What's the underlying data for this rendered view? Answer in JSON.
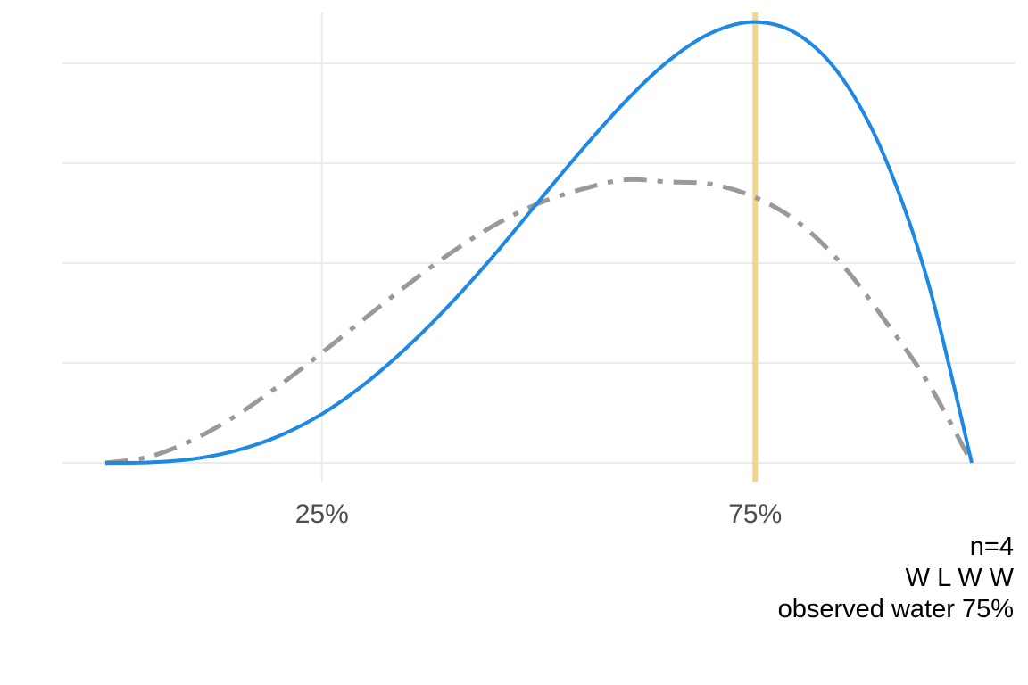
{
  "chart_data": {
    "type": "line",
    "title": "",
    "xlabel": "",
    "ylabel": "",
    "x_tick_values": [
      0.25,
      0.75
    ],
    "x_tick_labels": [
      "25%",
      "75%"
    ],
    "y_ticks_labeled": false,
    "grid": true,
    "xlim": [
      0,
      1
    ],
    "ylim": [
      0,
      2.15
    ],
    "reference_line": {
      "x": 0.75,
      "color": "#F0D58C"
    },
    "series": [
      {
        "style": "solid",
        "color": "#1E88E5",
        "x": [
          0,
          0.05,
          0.1,
          0.15,
          0.2,
          0.25,
          0.3,
          0.35,
          0.4,
          0.45,
          0.5,
          0.55,
          0.6,
          0.65,
          0.7,
          0.75,
          0.8,
          0.85,
          0.9,
          0.95,
          1.0
        ],
        "y": [
          0,
          0.002,
          0.018,
          0.058,
          0.128,
          0.234,
          0.38,
          0.56,
          0.768,
          1.0,
          1.25,
          1.497,
          1.728,
          1.923,
          2.058,
          2.109,
          2.048,
          1.843,
          1.458,
          0.857,
          0
        ]
      },
      {
        "style": "dashdot",
        "color": "#999999",
        "x": [
          0,
          0.05,
          0.1,
          0.15,
          0.2,
          0.25,
          0.3,
          0.35,
          0.4,
          0.45,
          0.5,
          0.55,
          0.6,
          0.65,
          0.7,
          0.75,
          0.8,
          0.85,
          0.9,
          0.95,
          1.0
        ],
        "y": [
          0,
          0.029,
          0.108,
          0.224,
          0.368,
          0.527,
          0.693,
          0.856,
          1.008,
          1.139,
          1.241,
          1.309,
          1.354,
          1.344,
          1.333,
          1.27,
          1.15,
          0.95,
          0.68,
          0.38,
          0
        ]
      }
    ]
  },
  "caption": {
    "line1": "n=4",
    "line2": "W L W W",
    "line3": "observed water 75%"
  }
}
